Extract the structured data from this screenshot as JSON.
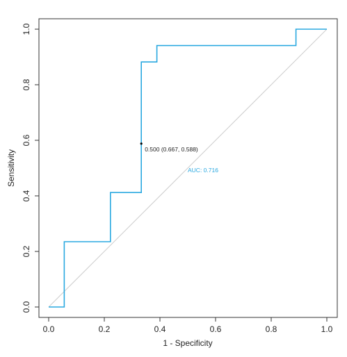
{
  "chart_data": {
    "type": "line",
    "title": "",
    "xlabel": "1 - Specificity",
    "ylabel": "Sensitivity",
    "xlim": [
      0,
      1
    ],
    "ylim": [
      0,
      1
    ],
    "x_ticks": [
      "0.0",
      "0.2",
      "0.4",
      "0.6",
      "0.8",
      "1.0"
    ],
    "y_ticks": [
      "0.0",
      "0.2",
      "0.4",
      "0.6",
      "0.8",
      "1.0"
    ],
    "grid": false,
    "series": [
      {
        "color": "#29a8e0",
        "x": [
          0.0,
          0.056,
          0.056,
          0.222,
          0.222,
          0.333,
          0.333,
          0.389,
          0.389,
          0.889,
          0.889,
          1.0
        ],
        "y": [
          0.0,
          0.0,
          0.235,
          0.235,
          0.412,
          0.412,
          0.882,
          0.882,
          0.941,
          0.941,
          1.0,
          1.0
        ]
      }
    ],
    "reference_line": {
      "from": [
        0,
        0
      ],
      "to": [
        1,
        1
      ],
      "color": "#cccccc"
    },
    "threshold_point": {
      "x": 0.333,
      "y": 0.588,
      "label": "0.500 (0.667, 0.588)",
      "color": "#000000"
    },
    "auc_label": {
      "x": 0.5,
      "y": 0.485,
      "text": "AUC: 0.716",
      "color": "#29a8e0"
    }
  }
}
